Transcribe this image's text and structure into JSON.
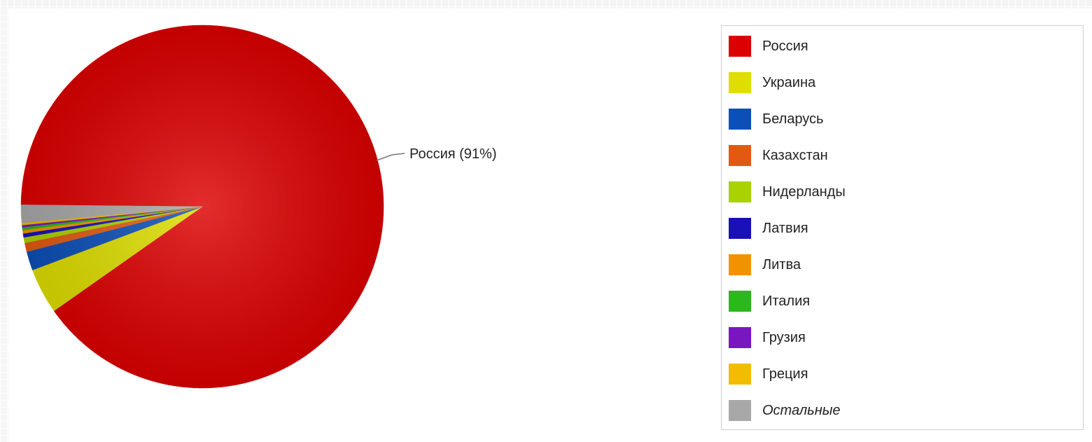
{
  "chart_data": {
    "type": "pie",
    "slices": [
      {
        "label": "Россия",
        "value": 91,
        "color": "#dd0000",
        "callout": "Россия (91%)"
      },
      {
        "label": "Украина",
        "value": 4.1,
        "color": "#dede00"
      },
      {
        "label": "Беларусь",
        "value": 1.7,
        "color": "#0c4fb8"
      },
      {
        "label": "Казахстан",
        "value": 0.8,
        "color": "#e25a12"
      },
      {
        "label": "Нидерланды",
        "value": 0.5,
        "color": "#a9d200"
      },
      {
        "label": "Латвия",
        "value": 0.35,
        "color": "#1a10b8"
      },
      {
        "label": "Литва",
        "value": 0.3,
        "color": "#f39200"
      },
      {
        "label": "Италия",
        "value": 0.25,
        "color": "#2ab81a"
      },
      {
        "label": "Грузия",
        "value": 0.2,
        "color": "#7a16c0"
      },
      {
        "label": "Греция",
        "value": 0.2,
        "color": "#f2bc00"
      },
      {
        "label": "Остальные",
        "value": 1.6,
        "color": "#a8a8a8",
        "italic": true
      }
    ],
    "legend_position": "right"
  }
}
